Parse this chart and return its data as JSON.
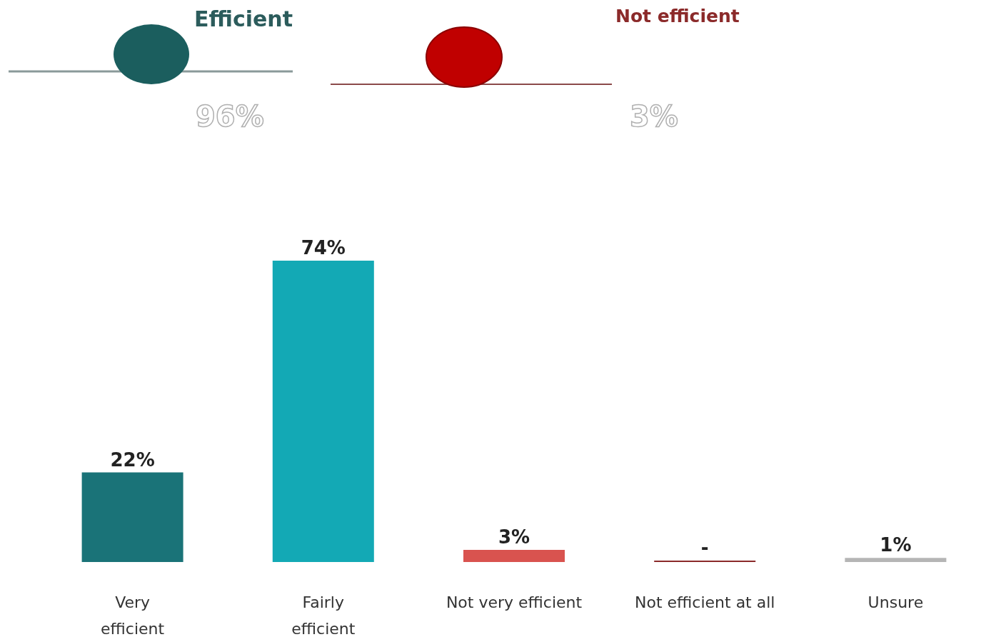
{
  "chart_data": {
    "type": "bar",
    "categories": [
      "Very efficient",
      "Fairly efficient",
      "Not very efficient",
      "Not efficient at all",
      "Unsure"
    ],
    "values": [
      22,
      74,
      3,
      0,
      1
    ],
    "colors": [
      "#1a7378",
      "#13a9b5",
      "#d9534f",
      "#8b2a2a",
      "#b5b5b5"
    ],
    "value_labels": [
      "22%",
      "74%",
      "3%",
      "-",
      "1%"
    ],
    "annotations": [
      "Efficient",
      "96%",
      "Not efficient",
      "3%"
    ]
  }
}
